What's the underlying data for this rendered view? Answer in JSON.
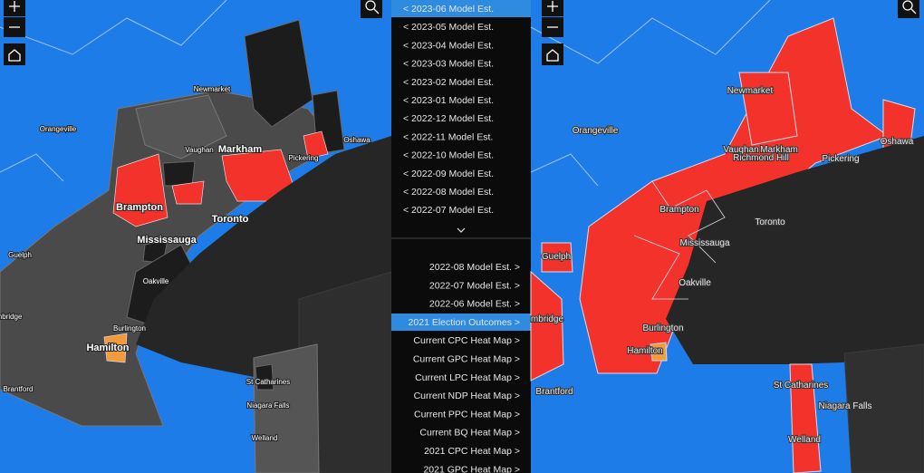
{
  "left_map": {
    "labels": [
      "Newmarket",
      "Orangeville",
      "Vaughan",
      "Markham",
      "Pickering",
      "Oshawa",
      "Brampton",
      "Toronto",
      "Mississauga",
      "Guelph",
      "Oakville",
      "mbridge",
      "Burlington",
      "Hamilton",
      "Brantford",
      "St Catharines",
      "Niagara Falls",
      "Welland"
    ]
  },
  "menu": {
    "upper": [
      "< 2023-06 Model Est.",
      "< 2023-05 Model Est.",
      "< 2023-04 Model Est.",
      "< 2023-03 Model Est.",
      "< 2023-02 Model Est.",
      "< 2023-01 Model Est.",
      "< 2022-12 Model Est.",
      "< 2022-11 Model Est.",
      "< 2022-10 Model Est.",
      "< 2022-09 Model Est.",
      "< 2022-08 Model Est.",
      "< 2022-07 Model Est."
    ],
    "lower": [
      "2022-08 Model Est. >",
      "2022-07 Model Est. >",
      "2022-06 Model Est. >",
      "2021 Election Outcomes >",
      "Current CPC Heat Map >",
      "Current GPC Heat Map >",
      "Current LPC Heat Map >",
      "Current NDP Heat Map >",
      "Current PPC Heat Map >",
      "Current BQ Heat Map >",
      "2021 CPC Heat Map >",
      "2021 GPC Heat Map >"
    ]
  },
  "right_map": {
    "labels": [
      "Newmarket",
      "Orangeville",
      "Vaughan",
      "Markham",
      "Richmond Hill",
      "Pickering",
      "Oshawa",
      "Brampton",
      "Toronto",
      "Mississauga",
      "Guelph",
      "Oakville",
      "mbridge",
      "Burlington",
      "Hamilton",
      "Brantford",
      "St Catharines",
      "Niagara Falls",
      "Welland"
    ]
  }
}
